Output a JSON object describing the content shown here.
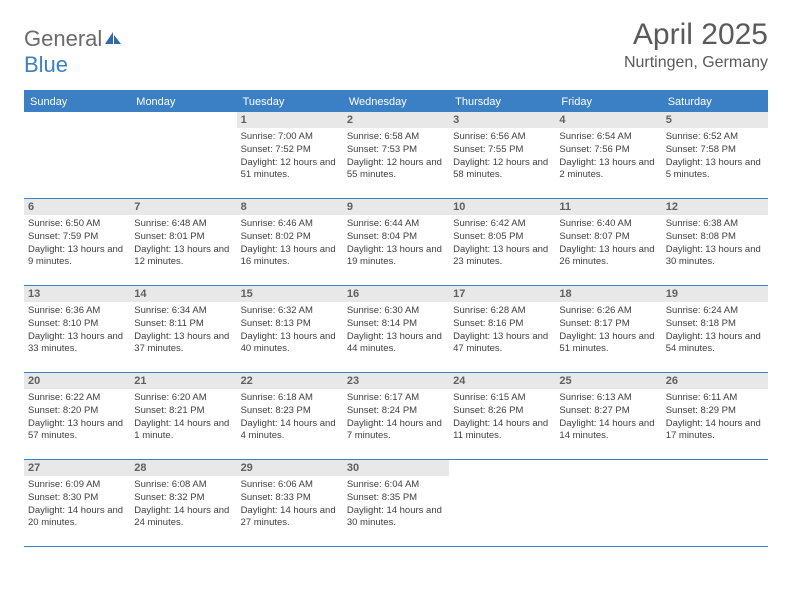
{
  "logo": {
    "text1": "General",
    "text2": "Blue"
  },
  "title": "April 2025",
  "location": "Nurtingen, Germany",
  "header_bg": "#3b7fc4",
  "day_names": [
    "Sunday",
    "Monday",
    "Tuesday",
    "Wednesday",
    "Thursday",
    "Friday",
    "Saturday"
  ],
  "weeks": [
    [
      {
        "n": "",
        "sr": "",
        "ss": "",
        "dl": ""
      },
      {
        "n": "",
        "sr": "",
        "ss": "",
        "dl": ""
      },
      {
        "n": "1",
        "sr": "Sunrise: 7:00 AM",
        "ss": "Sunset: 7:52 PM",
        "dl": "Daylight: 12 hours and 51 minutes."
      },
      {
        "n": "2",
        "sr": "Sunrise: 6:58 AM",
        "ss": "Sunset: 7:53 PM",
        "dl": "Daylight: 12 hours and 55 minutes."
      },
      {
        "n": "3",
        "sr": "Sunrise: 6:56 AM",
        "ss": "Sunset: 7:55 PM",
        "dl": "Daylight: 12 hours and 58 minutes."
      },
      {
        "n": "4",
        "sr": "Sunrise: 6:54 AM",
        "ss": "Sunset: 7:56 PM",
        "dl": "Daylight: 13 hours and 2 minutes."
      },
      {
        "n": "5",
        "sr": "Sunrise: 6:52 AM",
        "ss": "Sunset: 7:58 PM",
        "dl": "Daylight: 13 hours and 5 minutes."
      }
    ],
    [
      {
        "n": "6",
        "sr": "Sunrise: 6:50 AM",
        "ss": "Sunset: 7:59 PM",
        "dl": "Daylight: 13 hours and 9 minutes."
      },
      {
        "n": "7",
        "sr": "Sunrise: 6:48 AM",
        "ss": "Sunset: 8:01 PM",
        "dl": "Daylight: 13 hours and 12 minutes."
      },
      {
        "n": "8",
        "sr": "Sunrise: 6:46 AM",
        "ss": "Sunset: 8:02 PM",
        "dl": "Daylight: 13 hours and 16 minutes."
      },
      {
        "n": "9",
        "sr": "Sunrise: 6:44 AM",
        "ss": "Sunset: 8:04 PM",
        "dl": "Daylight: 13 hours and 19 minutes."
      },
      {
        "n": "10",
        "sr": "Sunrise: 6:42 AM",
        "ss": "Sunset: 8:05 PM",
        "dl": "Daylight: 13 hours and 23 minutes."
      },
      {
        "n": "11",
        "sr": "Sunrise: 6:40 AM",
        "ss": "Sunset: 8:07 PM",
        "dl": "Daylight: 13 hours and 26 minutes."
      },
      {
        "n": "12",
        "sr": "Sunrise: 6:38 AM",
        "ss": "Sunset: 8:08 PM",
        "dl": "Daylight: 13 hours and 30 minutes."
      }
    ],
    [
      {
        "n": "13",
        "sr": "Sunrise: 6:36 AM",
        "ss": "Sunset: 8:10 PM",
        "dl": "Daylight: 13 hours and 33 minutes."
      },
      {
        "n": "14",
        "sr": "Sunrise: 6:34 AM",
        "ss": "Sunset: 8:11 PM",
        "dl": "Daylight: 13 hours and 37 minutes."
      },
      {
        "n": "15",
        "sr": "Sunrise: 6:32 AM",
        "ss": "Sunset: 8:13 PM",
        "dl": "Daylight: 13 hours and 40 minutes."
      },
      {
        "n": "16",
        "sr": "Sunrise: 6:30 AM",
        "ss": "Sunset: 8:14 PM",
        "dl": "Daylight: 13 hours and 44 minutes."
      },
      {
        "n": "17",
        "sr": "Sunrise: 6:28 AM",
        "ss": "Sunset: 8:16 PM",
        "dl": "Daylight: 13 hours and 47 minutes."
      },
      {
        "n": "18",
        "sr": "Sunrise: 6:26 AM",
        "ss": "Sunset: 8:17 PM",
        "dl": "Daylight: 13 hours and 51 minutes."
      },
      {
        "n": "19",
        "sr": "Sunrise: 6:24 AM",
        "ss": "Sunset: 8:18 PM",
        "dl": "Daylight: 13 hours and 54 minutes."
      }
    ],
    [
      {
        "n": "20",
        "sr": "Sunrise: 6:22 AM",
        "ss": "Sunset: 8:20 PM",
        "dl": "Daylight: 13 hours and 57 minutes."
      },
      {
        "n": "21",
        "sr": "Sunrise: 6:20 AM",
        "ss": "Sunset: 8:21 PM",
        "dl": "Daylight: 14 hours and 1 minute."
      },
      {
        "n": "22",
        "sr": "Sunrise: 6:18 AM",
        "ss": "Sunset: 8:23 PM",
        "dl": "Daylight: 14 hours and 4 minutes."
      },
      {
        "n": "23",
        "sr": "Sunrise: 6:17 AM",
        "ss": "Sunset: 8:24 PM",
        "dl": "Daylight: 14 hours and 7 minutes."
      },
      {
        "n": "24",
        "sr": "Sunrise: 6:15 AM",
        "ss": "Sunset: 8:26 PM",
        "dl": "Daylight: 14 hours and 11 minutes."
      },
      {
        "n": "25",
        "sr": "Sunrise: 6:13 AM",
        "ss": "Sunset: 8:27 PM",
        "dl": "Daylight: 14 hours and 14 minutes."
      },
      {
        "n": "26",
        "sr": "Sunrise: 6:11 AM",
        "ss": "Sunset: 8:29 PM",
        "dl": "Daylight: 14 hours and 17 minutes."
      }
    ],
    [
      {
        "n": "27",
        "sr": "Sunrise: 6:09 AM",
        "ss": "Sunset: 8:30 PM",
        "dl": "Daylight: 14 hours and 20 minutes."
      },
      {
        "n": "28",
        "sr": "Sunrise: 6:08 AM",
        "ss": "Sunset: 8:32 PM",
        "dl": "Daylight: 14 hours and 24 minutes."
      },
      {
        "n": "29",
        "sr": "Sunrise: 6:06 AM",
        "ss": "Sunset: 8:33 PM",
        "dl": "Daylight: 14 hours and 27 minutes."
      },
      {
        "n": "30",
        "sr": "Sunrise: 6:04 AM",
        "ss": "Sunset: 8:35 PM",
        "dl": "Daylight: 14 hours and 30 minutes."
      },
      {
        "n": "",
        "sr": "",
        "ss": "",
        "dl": ""
      },
      {
        "n": "",
        "sr": "",
        "ss": "",
        "dl": ""
      },
      {
        "n": "",
        "sr": "",
        "ss": "",
        "dl": ""
      }
    ]
  ]
}
